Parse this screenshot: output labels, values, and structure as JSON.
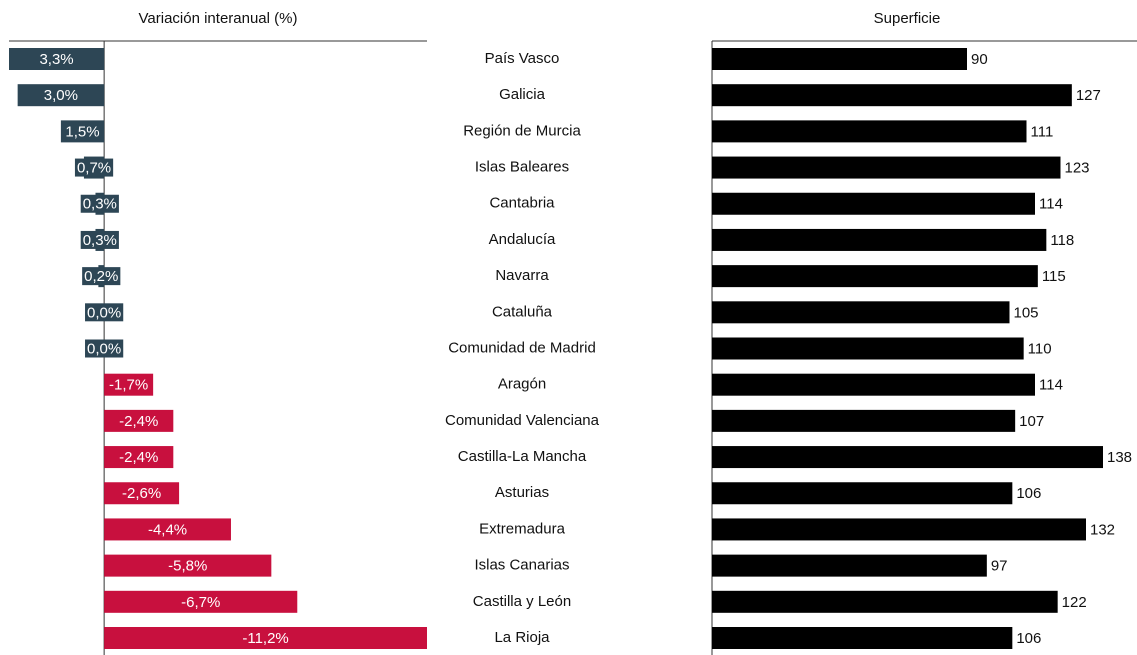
{
  "chart_data": [
    {
      "type": "diverging-bar",
      "title": "Variación interanual (%)",
      "categories": [
        "País Vasco",
        "Galicia",
        "Región de Murcia",
        "Islas Baleares",
        "Cantabria",
        "Andalucía",
        "Navarra",
        "Cataluña",
        "Comunidad de Madrid",
        "Aragón",
        "Comunidad Valenciana",
        "Castilla-La Mancha",
        "Asturias",
        "Extremadura",
        "Islas Canarias",
        "Castilla y León",
        "La Rioja"
      ],
      "values": [
        3.3,
        3.0,
        1.5,
        0.7,
        0.3,
        0.3,
        0.2,
        0.0,
        0.0,
        -1.7,
        -2.4,
        -2.4,
        -2.6,
        -4.4,
        -5.8,
        -6.7,
        -11.2
      ],
      "value_labels": [
        "3,3%",
        "3,0%",
        "1,5%",
        "0,7%",
        "0,3%",
        "0,3%",
        "0,2%",
        "0,0%",
        "0,0%",
        "-1,7%",
        "-2,4%",
        "-2,4%",
        "-2,6%",
        "-4,4%",
        "-5,8%",
        "-6,7%",
        "-11,2%"
      ],
      "color": "#2d4655",
      "negative_color": "#c8103e",
      "xlim": [
        3.3,
        -11.2
      ]
    },
    {
      "type": "bar",
      "title": "Superficie",
      "values": [
        90,
        127,
        111,
        123,
        114,
        118,
        115,
        105,
        110,
        114,
        107,
        138,
        106,
        132,
        97,
        122,
        106
      ],
      "color": "#000000",
      "xlim": [
        0,
        150
      ]
    }
  ]
}
